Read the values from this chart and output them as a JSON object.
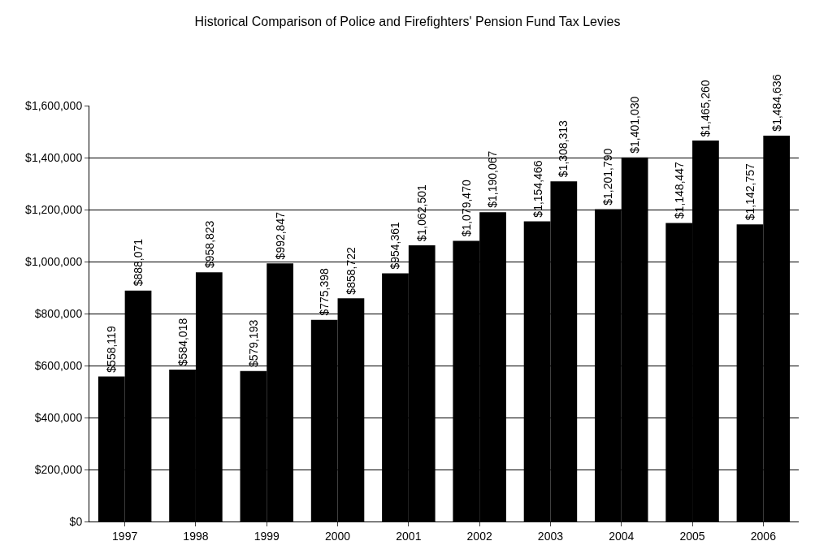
{
  "chart_data": {
    "type": "bar",
    "title": "Historical Comparison of Police and Firefighters' Pension Fund Tax Levies",
    "categories": [
      "1997",
      "1998",
      "1999",
      "2000",
      "2001",
      "2002",
      "2003",
      "2004",
      "2005",
      "2006"
    ],
    "series": [
      {
        "color": "#000000",
        "values": [
          558119,
          584018,
          579193,
          775398,
          954361,
          1079470,
          1154466,
          1201790,
          1148447,
          1142757
        ],
        "value_labels": [
          "$558,119",
          "$584,018",
          "$579,193",
          "$775,398",
          "$954,361",
          "$1,079,470",
          "$1,154,466",
          "$1,201,790",
          "$1,148,447",
          "$1,142,757"
        ]
      },
      {
        "color": "#000000",
        "values": [
          888071,
          958823,
          992847,
          858722,
          1062501,
          1190067,
          1308313,
          1401030,
          1465260,
          1484636
        ],
        "value_labels": [
          "$888,071",
          "$958,823",
          "$992,847",
          "$858,722",
          "$1,062,501",
          "$1,190,067",
          "$1,308,313",
          "$1,401,030",
          "$1,465,260",
          "$1,484,636"
        ]
      }
    ],
    "ylim": [
      0,
      1600000
    ],
    "yticks": [
      {
        "value": 0,
        "label": "$0"
      },
      {
        "value": 200000,
        "label": "$200,000"
      },
      {
        "value": 400000,
        "label": "$400,000"
      },
      {
        "value": 600000,
        "label": "$600,000"
      },
      {
        "value": 800000,
        "label": "$800,000"
      },
      {
        "value": 1000000,
        "label": "$1,000,000"
      },
      {
        "value": 1200000,
        "label": "$1,200,000"
      },
      {
        "value": 1400000,
        "label": "$1,400,000"
      },
      {
        "value": 1600000,
        "label": "$1,600,000"
      }
    ],
    "grid": "y"
  }
}
